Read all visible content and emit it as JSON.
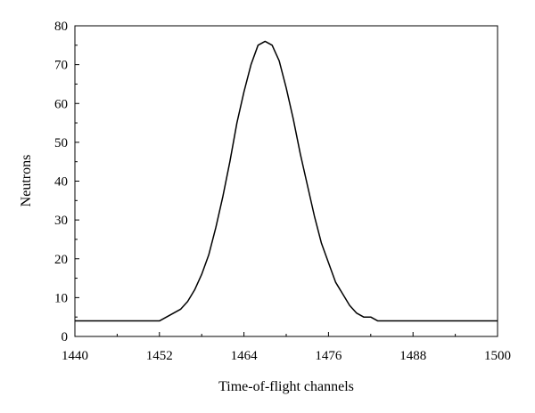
{
  "chart_data": {
    "type": "line",
    "title": "",
    "xlabel": "Time-of-flight channels",
    "ylabel": "Neutrons",
    "xlim": [
      1440,
      1500
    ],
    "ylim": [
      0,
      80
    ],
    "x_ticks": [
      1440,
      1452,
      1464,
      1476,
      1488,
      1500
    ],
    "y_ticks": [
      0,
      10,
      20,
      30,
      40,
      50,
      60,
      70,
      80
    ],
    "grid": false,
    "legend": "none",
    "line_color": "#000000",
    "series": [
      {
        "x": [
          1440,
          1452,
          1453,
          1454,
          1455,
          1456,
          1457,
          1458,
          1459,
          1460,
          1461,
          1462,
          1463,
          1464,
          1465,
          1466,
          1467,
          1468,
          1469,
          1470,
          1471,
          1472,
          1473,
          1474,
          1475,
          1476,
          1477,
          1478,
          1479,
          1480,
          1481,
          1482,
          1483,
          1484,
          1485,
          1500
        ],
        "y": [
          4,
          4,
          5,
          6,
          7,
          9,
          12,
          16,
          21,
          28,
          36,
          45,
          55,
          63,
          70,
          75,
          76,
          75,
          71,
          64,
          56,
          47,
          39,
          31,
          24,
          19,
          14,
          11,
          8,
          6,
          5,
          5,
          4,
          4,
          4,
          4
        ]
      }
    ]
  }
}
